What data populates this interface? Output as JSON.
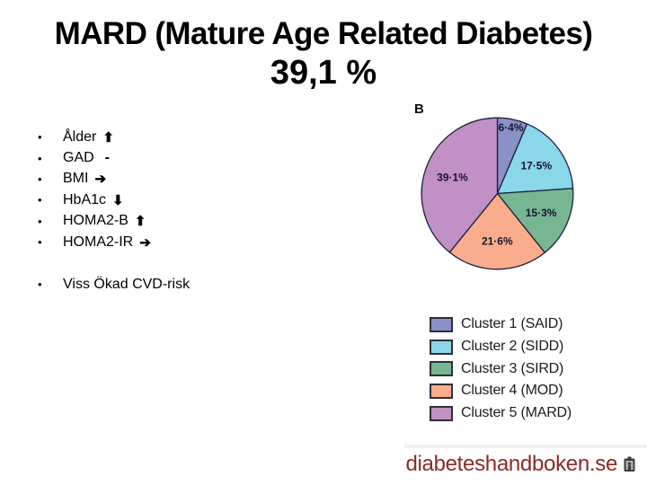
{
  "slide": {
    "title_line1": "MARD (Mature Age Related Diabetes)",
    "title_line2": "39,1 %",
    "bullets": [
      {
        "label": "Ålder",
        "indicator": "up"
      },
      {
        "label": "GAD",
        "indicator": "dash"
      },
      {
        "label": "BMI",
        "indicator": "right"
      },
      {
        "label": "HbA1c",
        "indicator": "down"
      },
      {
        "label": "HOMA2-B",
        "indicator": "up"
      },
      {
        "label": "HOMA2-IR",
        "indicator": "right"
      }
    ],
    "secondary_bullet": "Viss Ökad CVD-risk",
    "glyphs": {
      "up": "⬆",
      "right": "➔",
      "down": "⬇",
      "dash": "-",
      "bullet": "•"
    },
    "footer": {
      "text": "diabeteshandboken.se",
      "color": "#8E2A22"
    }
  },
  "chart_data": {
    "type": "pie",
    "panel_label": "B",
    "categories": [
      "Cluster 1 (SAID)",
      "Cluster 2 (SIDD)",
      "Cluster 3 (SIRD)",
      "Cluster 4 (MOD)",
      "Cluster 5 (MARD)"
    ],
    "values": [
      6.4,
      17.5,
      15.3,
      21.6,
      39.1
    ],
    "slice_labels": [
      "6·4%",
      "17·5%",
      "15·3%",
      "21·6%",
      "39·1%"
    ],
    "colors": [
      "#8A91C7",
      "#8AD7E9",
      "#76B792",
      "#FAAD8D",
      "#C190C4"
    ],
    "outline_color": "#1E1E3C",
    "start_angle_deg": 0,
    "direction": "clockwise",
    "legend_position": "below-chart",
    "label_radius": [
      0.89,
      0.63,
      0.63,
      0.63,
      0.63
    ]
  }
}
